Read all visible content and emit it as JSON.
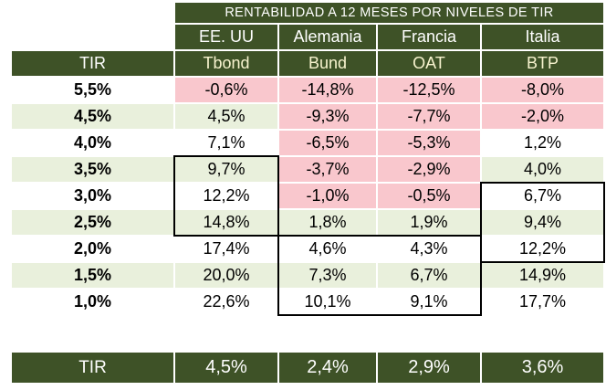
{
  "header": {
    "title": "RENTABILIDAD A 12 MESES POR NIVELES DE TIR",
    "tir_label": "TIR"
  },
  "columns": [
    {
      "country": "EE. UU",
      "bond": "Tbond"
    },
    {
      "country": "Alemania",
      "bond": "Bund"
    },
    {
      "country": "Francia",
      "bond": "OAT"
    },
    {
      "country": "Italia",
      "bond": "BTP"
    }
  ],
  "rows": [
    {
      "tir": "5,5%",
      "values": [
        "-0,6%",
        "-14,8%",
        "-12,5%",
        "-8,0%"
      ]
    },
    {
      "tir": "4,5%",
      "values": [
        "4,5%",
        "-9,3%",
        "-7,7%",
        "-2,0%"
      ]
    },
    {
      "tir": "4,0%",
      "values": [
        "7,1%",
        "-6,5%",
        "-5,3%",
        "1,2%"
      ]
    },
    {
      "tir": "3,5%",
      "values": [
        "9,7%",
        "-3,7%",
        "-2,9%",
        "4,0%"
      ]
    },
    {
      "tir": "3,0%",
      "values": [
        "12,2%",
        "-1,0%",
        "-0,5%",
        "6,7%"
      ]
    },
    {
      "tir": "2,5%",
      "values": [
        "14,8%",
        "1,8%",
        "1,9%",
        "9,4%"
      ]
    },
    {
      "tir": "2,0%",
      "values": [
        "17,4%",
        "4,6%",
        "4,3%",
        "12,2%"
      ]
    },
    {
      "tir": "1,5%",
      "values": [
        "20,0%",
        "7,3%",
        "6,7%",
        "14,9%"
      ]
    },
    {
      "tir": "1,0%",
      "values": [
        "22,6%",
        "10,1%",
        "9,1%",
        "17,7%"
      ]
    }
  ],
  "footer": {
    "label": "TIR",
    "values": [
      "4,5%",
      "2,4%",
      "2,9%",
      "3,6%"
    ]
  },
  "colors": {
    "dark_green": "#3E5227",
    "light_green_row": "#E9F0DC",
    "negative_pink": "#F9C7CD",
    "bond_header_text": "#F7F3CE",
    "highlight_border": "#000000"
  },
  "highlights": [
    {
      "column": "Tbond",
      "tir_range": [
        "3,5%",
        "2,5%"
      ]
    },
    {
      "column": "Bund+OAT",
      "tir_range": [
        "2,0%",
        "1,0%"
      ]
    },
    {
      "column": "BTP",
      "tir_range": [
        "3,0%",
        "2,0%"
      ]
    }
  ],
  "chart_data": {
    "type": "table",
    "title": "RENTABILIDAD A 12 MESES POR NIVELES DE TIR",
    "xlabel": "TIR",
    "categories": [
      5.5,
      4.5,
      4.0,
      3.5,
      3.0,
      2.5,
      2.0,
      1.5,
      1.0
    ],
    "series": [
      {
        "name": "Tbond (EE. UU)",
        "values": [
          -0.6,
          4.5,
          7.1,
          9.7,
          12.2,
          14.8,
          17.4,
          20.0,
          22.6
        ]
      },
      {
        "name": "Bund (Alemania)",
        "values": [
          -14.8,
          -9.3,
          -6.5,
          -3.7,
          -1.0,
          1.8,
          4.6,
          7.3,
          10.1
        ]
      },
      {
        "name": "OAT (Francia)",
        "values": [
          -12.5,
          -7.7,
          -5.3,
          -2.9,
          -0.5,
          1.9,
          4.3,
          6.7,
          9.1
        ]
      },
      {
        "name": "BTP (Italia)",
        "values": [
          -8.0,
          -2.0,
          1.2,
          4.0,
          6.7,
          9.4,
          12.2,
          14.9,
          17.7
        ]
      }
    ],
    "current_tir": {
      "Tbond": 4.5,
      "Bund": 2.4,
      "OAT": 2.9,
      "BTP": 3.6
    },
    "units": "%"
  }
}
